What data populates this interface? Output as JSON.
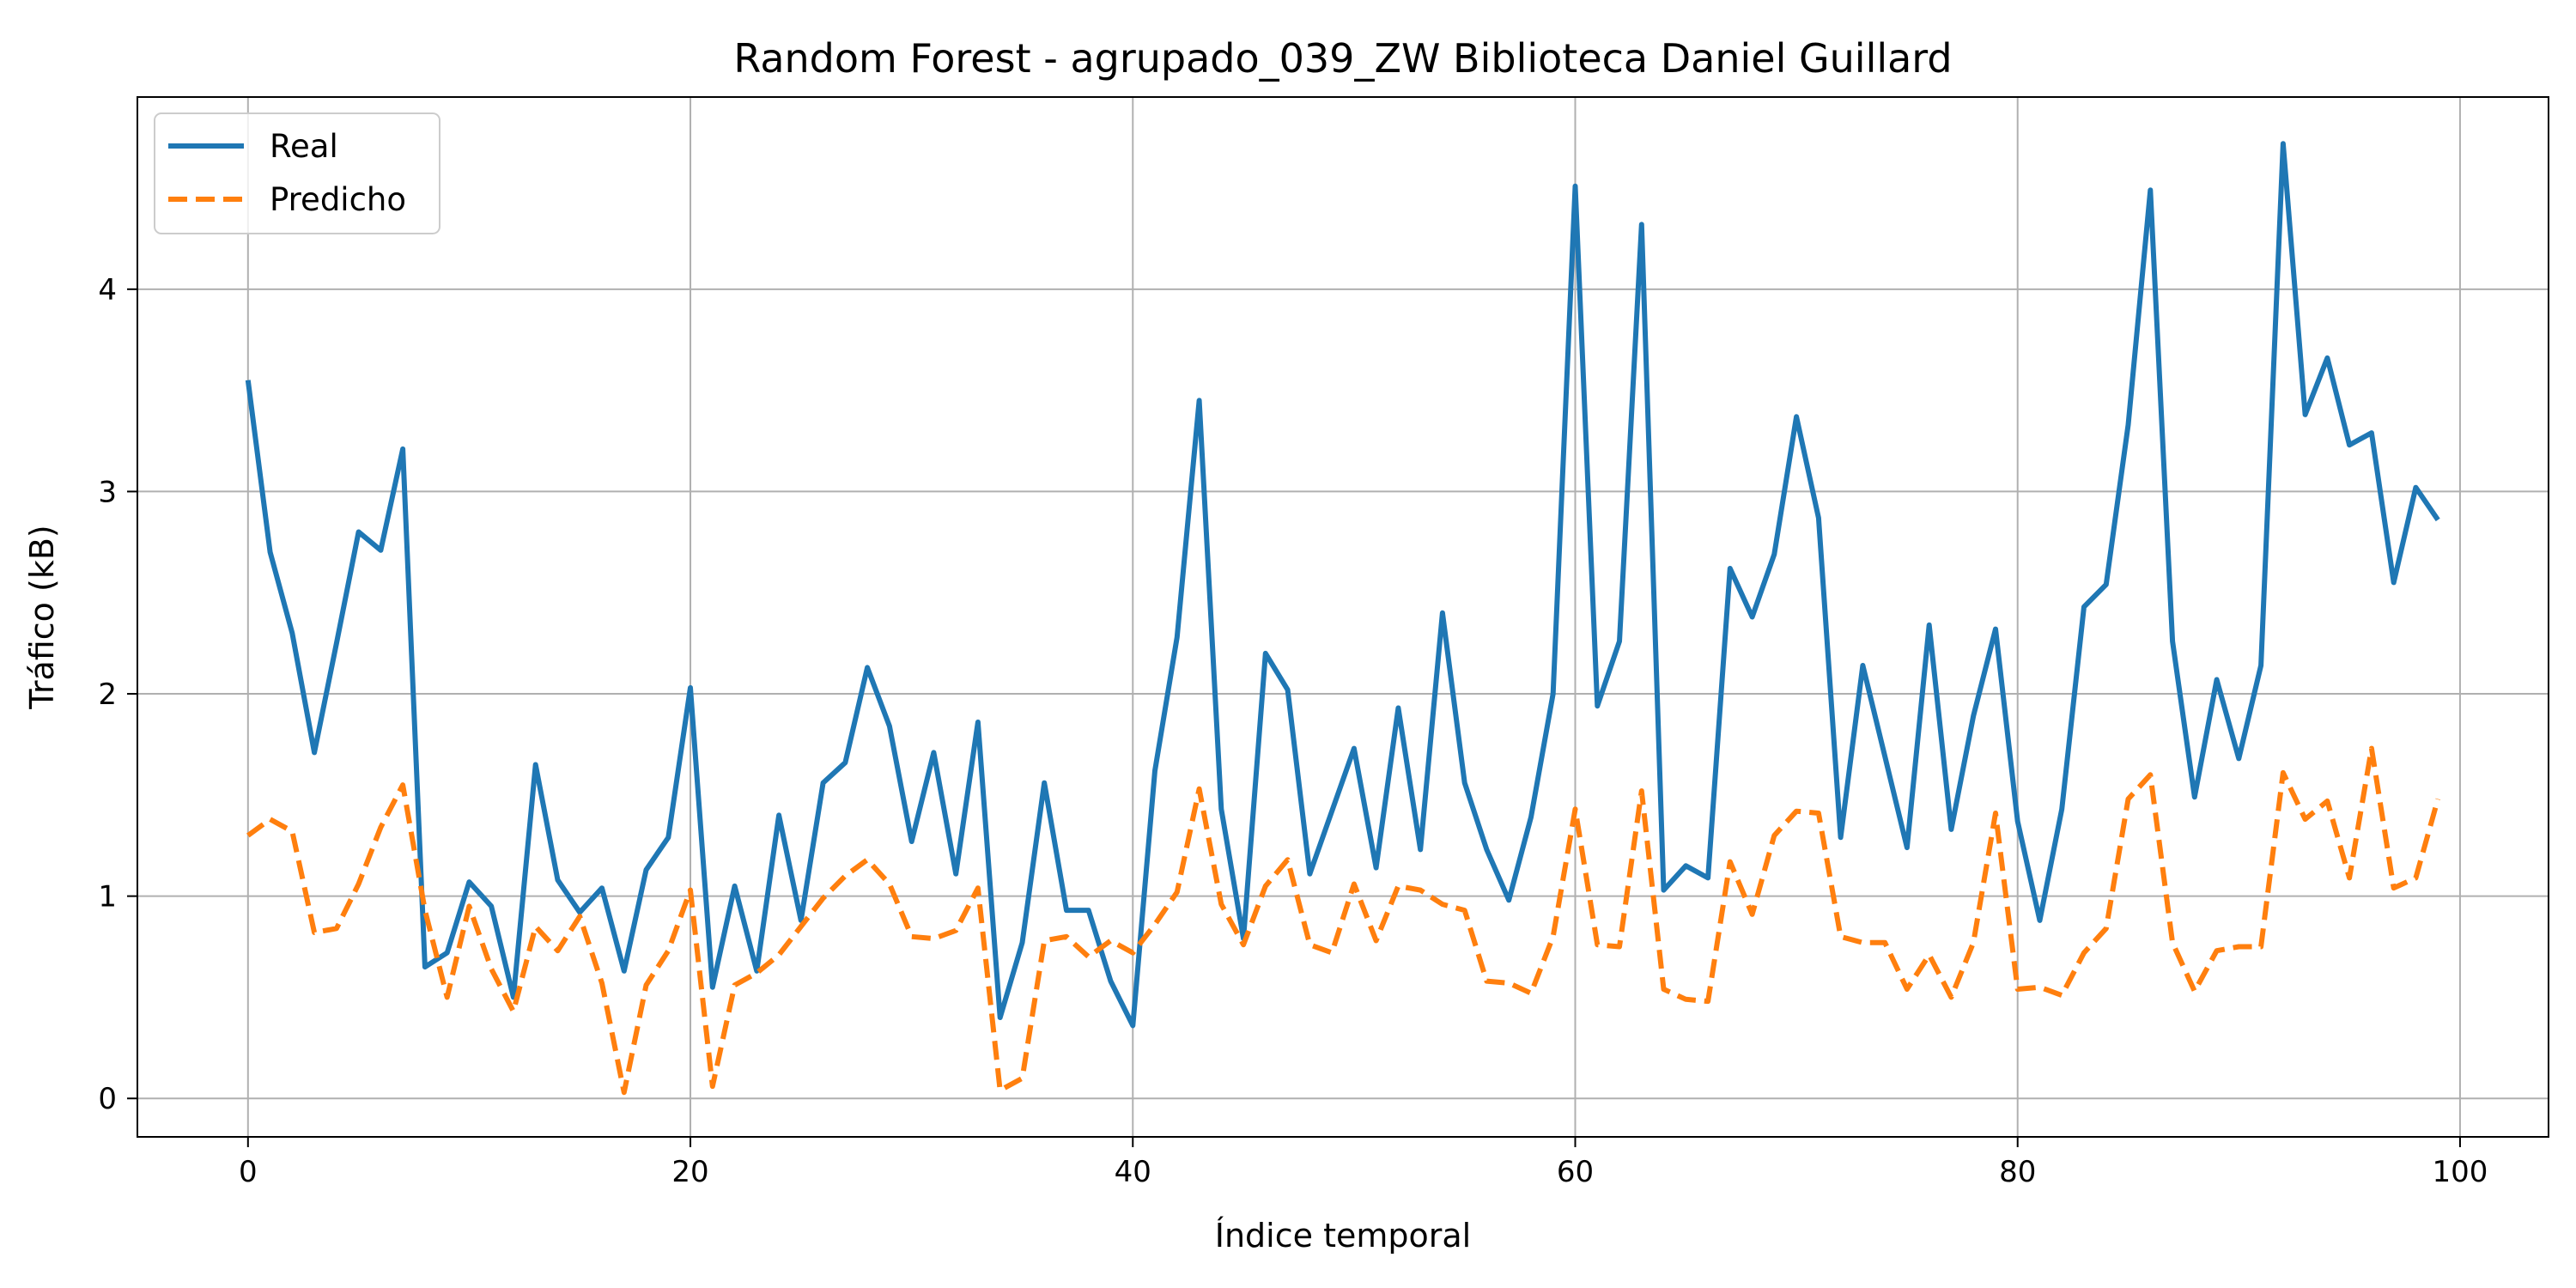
{
  "chart_data": {
    "type": "line",
    "title": "Random Forest - agrupado_039_ZW Biblioteca Daniel Guillard",
    "xlabel": "Índice temporal",
    "ylabel": "Tráfico (kB)",
    "xlim": [
      -5,
      104
    ],
    "ylim": [
      -0.19,
      4.95
    ],
    "xticks": [
      0,
      20,
      40,
      60,
      80,
      100
    ],
    "xtick_labels": [
      "0",
      "20",
      "40",
      "60",
      "80",
      "100"
    ],
    "yticks": [
      0,
      1,
      2,
      3,
      4
    ],
    "ytick_labels": [
      "0",
      "1",
      "2",
      "3",
      "4"
    ],
    "grid": true,
    "legend_position": "upper-left",
    "series": [
      {
        "name": "Real",
        "color": "#1f77b4",
        "style": "solid",
        "x": [
          0,
          1,
          2,
          3,
          4,
          5,
          6,
          7,
          8,
          9,
          10,
          11,
          12,
          13,
          14,
          15,
          16,
          17,
          18,
          19,
          20,
          21,
          22,
          23,
          24,
          25,
          26,
          27,
          28,
          29,
          30,
          31,
          32,
          33,
          34,
          35,
          36,
          37,
          38,
          39,
          40,
          41,
          42,
          43,
          44,
          45,
          46,
          47,
          48,
          49,
          50,
          51,
          52,
          53,
          54,
          55,
          56,
          57,
          58,
          59,
          60,
          61,
          62,
          63,
          64,
          65,
          66,
          67,
          68,
          69,
          70,
          71,
          72,
          73,
          74,
          75,
          76,
          77,
          78,
          79,
          80,
          81,
          82,
          83,
          84,
          85,
          86,
          87,
          88,
          89,
          90,
          91,
          92,
          93,
          94,
          95,
          96,
          97,
          98,
          99
        ],
        "values": [
          3.55,
          2.7,
          2.3,
          1.71,
          2.25,
          2.8,
          2.71,
          3.21,
          0.65,
          0.72,
          1.07,
          0.95,
          0.5,
          1.65,
          1.08,
          0.92,
          1.04,
          0.63,
          1.13,
          1.29,
          2.03,
          0.55,
          1.05,
          0.63,
          1.4,
          0.88,
          1.56,
          1.66,
          2.13,
          1.84,
          1.27,
          1.71,
          1.11,
          1.86,
          0.4,
          0.77,
          1.56,
          0.93,
          0.93,
          0.58,
          0.36,
          1.62,
          2.28,
          3.45,
          1.43,
          0.79,
          2.2,
          2.02,
          1.11,
          1.42,
          1.73,
          1.14,
          1.93,
          1.23,
          2.4,
          1.56,
          1.23,
          0.98,
          1.39,
          2.0,
          4.51,
          1.94,
          2.26,
          4.32,
          1.03,
          1.15,
          1.09,
          2.62,
          2.38,
          2.69,
          3.37,
          2.87,
          1.29,
          2.14,
          1.69,
          1.24,
          2.34,
          1.33,
          1.89,
          2.32,
          1.37,
          0.88,
          1.43,
          2.43,
          2.54,
          3.33,
          4.49,
          2.26,
          1.49,
          2.07,
          1.68,
          2.14,
          4.72,
          3.38,
          3.66,
          3.23,
          3.29,
          2.55,
          3.02,
          2.86
        ]
      },
      {
        "name": "Predicho",
        "color": "#ff7f0e",
        "style": "dashed",
        "x": [
          0,
          1,
          2,
          3,
          4,
          5,
          6,
          7,
          8,
          9,
          10,
          11,
          12,
          13,
          14,
          15,
          16,
          17,
          18,
          19,
          20,
          21,
          22,
          23,
          24,
          25,
          26,
          27,
          28,
          29,
          30,
          31,
          32,
          33,
          34,
          35,
          36,
          37,
          38,
          39,
          40,
          41,
          42,
          43,
          44,
          45,
          46,
          47,
          48,
          49,
          50,
          51,
          52,
          53,
          54,
          55,
          56,
          57,
          58,
          59,
          60,
          61,
          62,
          63,
          64,
          65,
          66,
          67,
          68,
          69,
          70,
          71,
          72,
          73,
          74,
          75,
          76,
          77,
          78,
          79,
          80,
          81,
          82,
          83,
          84,
          85,
          86,
          87,
          88,
          89,
          90,
          91,
          92,
          93,
          94,
          95,
          96,
          97,
          98,
          99
        ],
        "values": [
          1.3,
          1.38,
          1.32,
          0.82,
          0.84,
          1.06,
          1.34,
          1.55,
          0.93,
          0.5,
          0.95,
          0.64,
          0.43,
          0.85,
          0.73,
          0.9,
          0.57,
          0.03,
          0.56,
          0.73,
          1.03,
          0.06,
          0.56,
          0.62,
          0.71,
          0.85,
          0.99,
          1.1,
          1.18,
          1.06,
          0.8,
          0.79,
          0.83,
          1.04,
          0.04,
          0.1,
          0.78,
          0.8,
          0.7,
          0.78,
          0.72,
          0.86,
          1.02,
          1.53,
          0.96,
          0.76,
          1.05,
          1.18,
          0.76,
          0.72,
          1.06,
          0.78,
          1.05,
          1.03,
          0.96,
          0.93,
          0.58,
          0.57,
          0.52,
          0.8,
          1.43,
          0.76,
          0.75,
          1.52,
          0.54,
          0.49,
          0.48,
          1.17,
          0.91,
          1.3,
          1.42,
          1.41,
          0.8,
          0.77,
          0.77,
          0.54,
          0.71,
          0.5,
          0.77,
          1.41,
          0.54,
          0.55,
          0.51,
          0.72,
          0.84,
          1.48,
          1.6,
          0.77,
          0.53,
          0.73,
          0.75,
          0.75,
          1.61,
          1.38,
          1.47,
          1.09,
          1.73,
          1.04,
          1.09,
          1.48
        ]
      }
    ]
  }
}
